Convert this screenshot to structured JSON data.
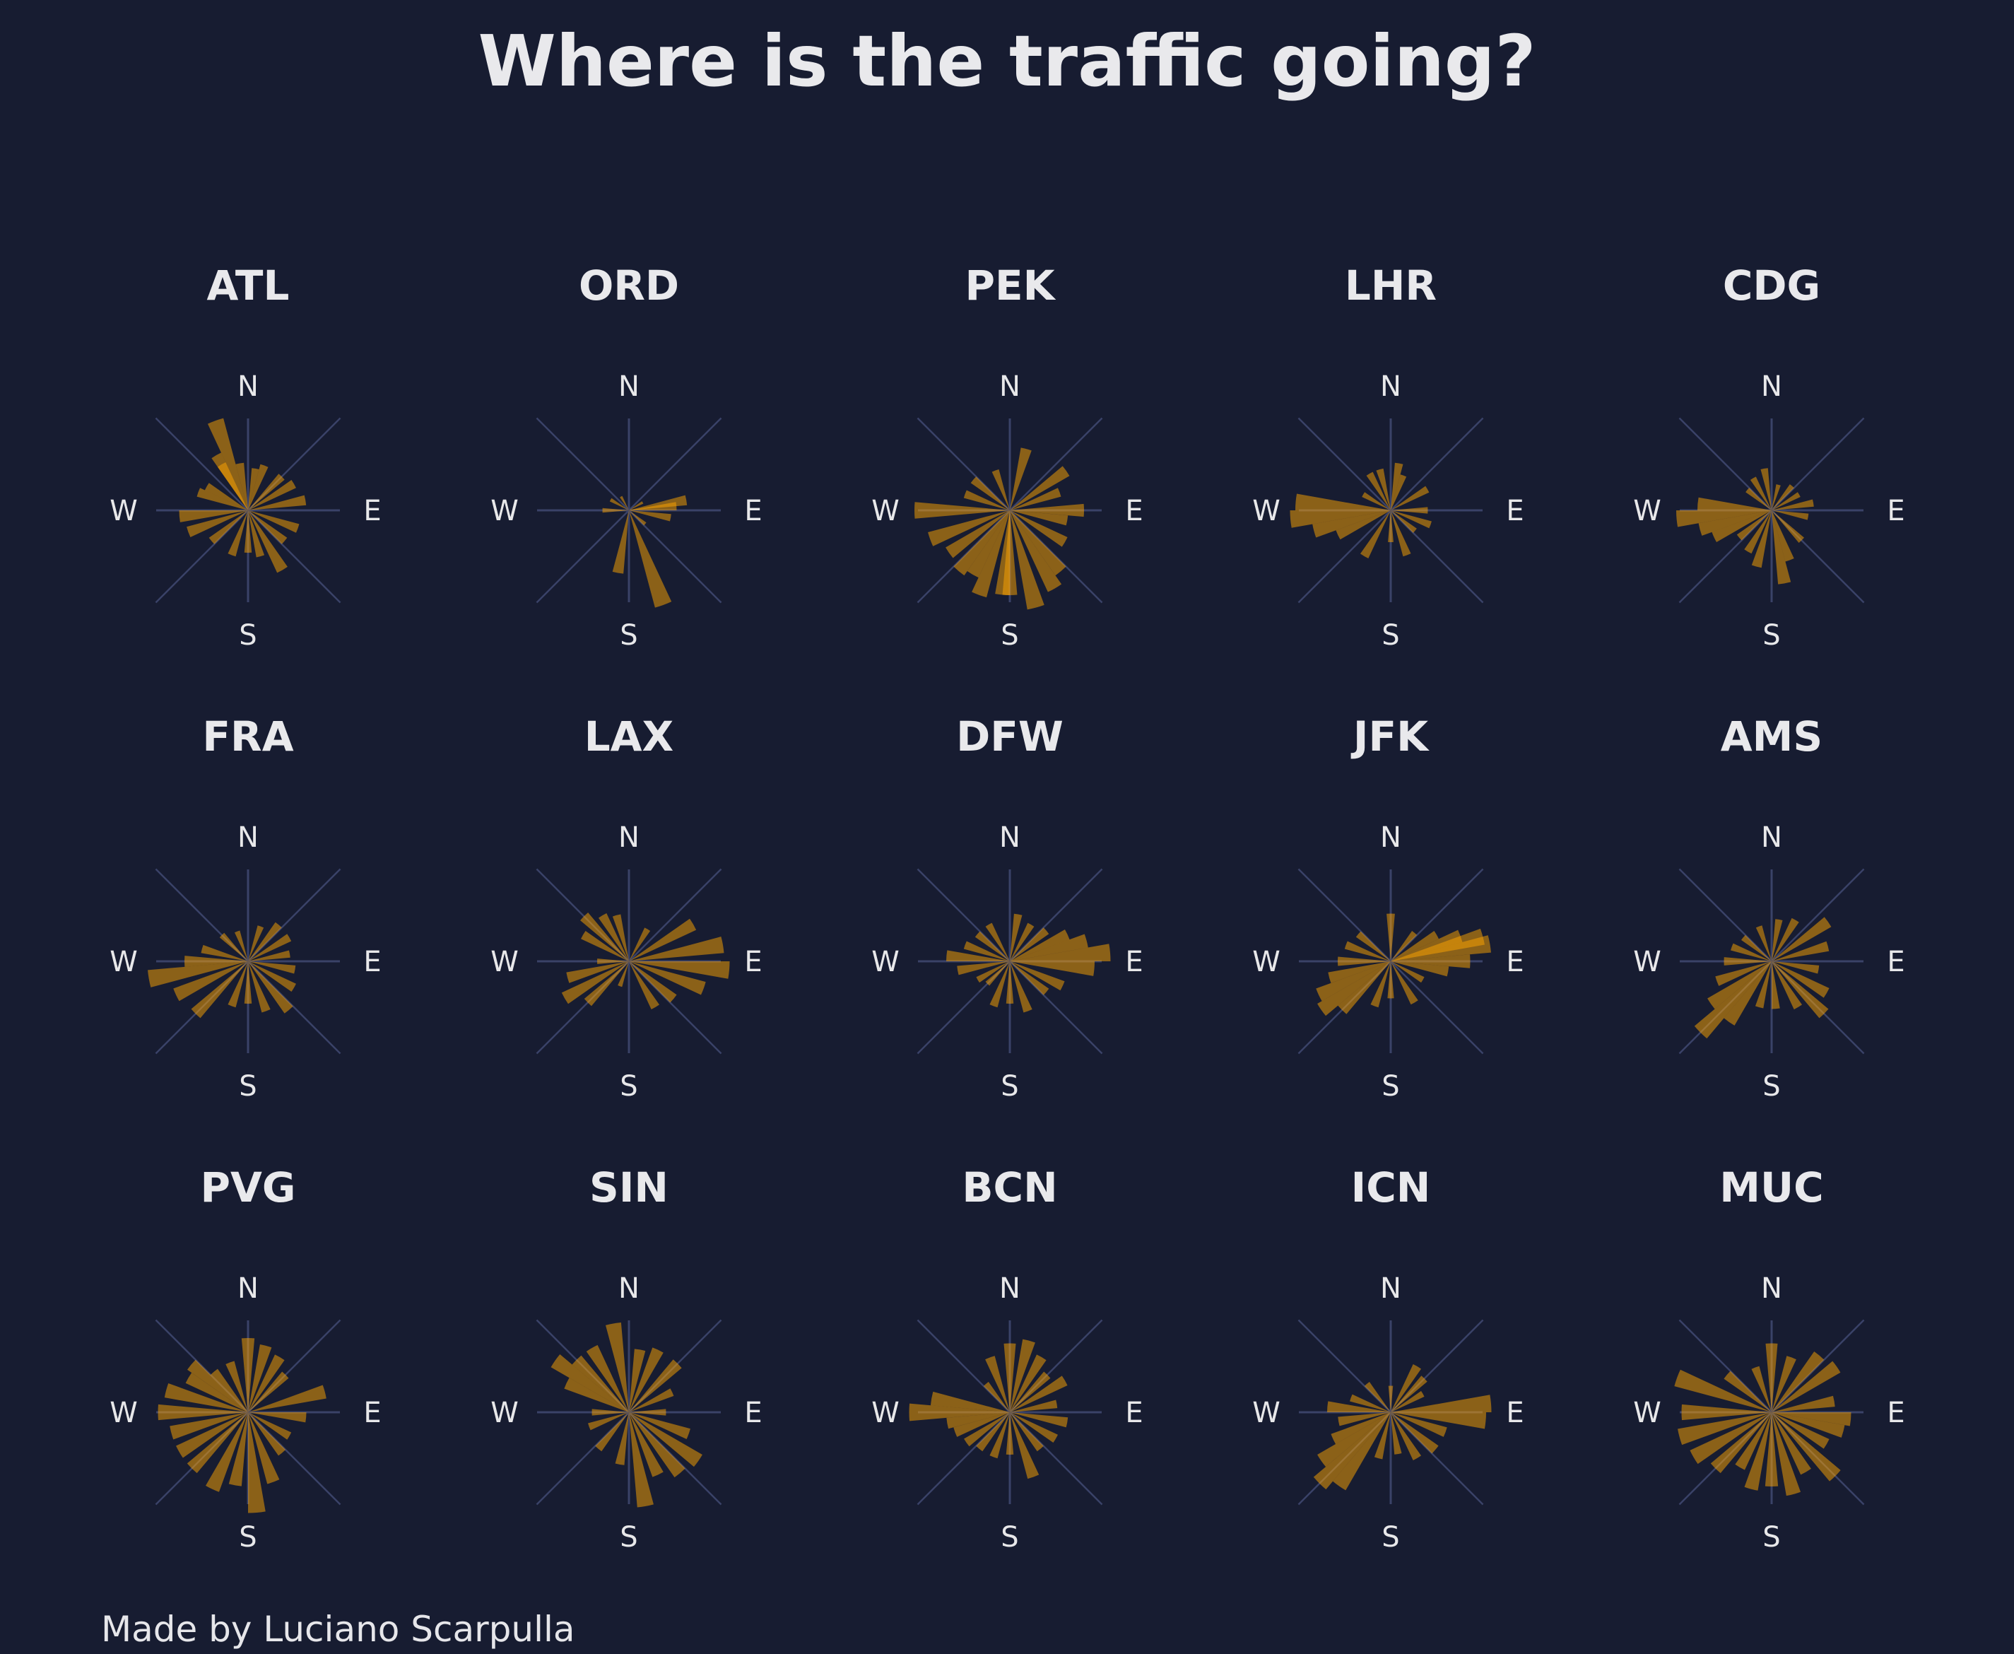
{
  "title": "Where is the traffic going?",
  "credit": "Made by Luciano Scarpulla",
  "colors": {
    "background": "#171c31",
    "bar": "#ffa500",
    "axis": "#3a4268",
    "text": "#e8e8ea"
  },
  "compass": [
    "N",
    "E",
    "S",
    "W"
  ],
  "chart_data": {
    "type": "polar-bar",
    "grid": true,
    "bearing_bin_deg": 10,
    "direction_labels": [
      "N",
      "E",
      "S",
      "W"
    ],
    "panels": [
      {
        "name": "ATL",
        "bars": [
          [
            -20,
            0.9
          ],
          [
            -30,
            0.6
          ],
          [
            80,
            0.55
          ],
          [
            60,
            0.5
          ],
          [
            150,
            0.65
          ],
          [
            165,
            0.45
          ],
          [
            250,
            0.6
          ],
          [
            265,
            0.65
          ],
          [
            290,
            0.5
          ],
          [
            200,
            0.45
          ],
          [
            20,
            0.45
          ],
          [
            110,
            0.5
          ],
          [
            180,
            0.4
          ],
          [
            330,
            0.5
          ],
          [
            45,
            0.45
          ],
          [
            130,
            0.45
          ],
          [
            230,
            0.45
          ],
          [
            300,
            0.45
          ],
          [
            10,
            0.4
          ],
          [
            350,
            0.45
          ]
        ]
      },
      {
        "name": "ORD",
        "bars": [
          [
            160,
            0.95
          ],
          [
            190,
            0.6
          ],
          [
            85,
            0.45
          ],
          [
            80,
            0.55
          ],
          [
            100,
            0.4
          ],
          [
            270,
            0.25
          ],
          [
            300,
            0.2
          ],
          [
            130,
            0.2
          ],
          [
            60,
            0.15
          ],
          [
            330,
            0.15
          ]
        ]
      },
      {
        "name": "PEK",
        "bars": [
          [
            15,
            0.6
          ],
          [
            55,
            0.65
          ],
          [
            90,
            0.7
          ],
          [
            270,
            0.9
          ],
          [
            250,
            0.8
          ],
          [
            235,
            0.7
          ],
          [
            220,
            0.75
          ],
          [
            200,
            0.85
          ],
          [
            185,
            0.8
          ],
          [
            165,
            0.95
          ],
          [
            150,
            0.85
          ],
          [
            140,
            0.75
          ],
          [
            120,
            0.6
          ],
          [
            100,
            0.55
          ],
          [
            70,
            0.5
          ],
          [
            290,
            0.45
          ],
          [
            310,
            0.45
          ],
          [
            340,
            0.4
          ],
          [
            180,
            0.8
          ],
          [
            210,
            0.7
          ]
        ]
      },
      {
        "name": "LHR",
        "bars": [
          [
            265,
            0.95
          ],
          [
            275,
            0.9
          ],
          [
            255,
            0.75
          ],
          [
            245,
            0.55
          ],
          [
            330,
            0.4
          ],
          [
            345,
            0.4
          ],
          [
            20,
            0.35
          ],
          [
            60,
            0.4
          ],
          [
            90,
            0.35
          ],
          [
            110,
            0.4
          ],
          [
            130,
            0.3
          ],
          [
            160,
            0.45
          ],
          [
            210,
            0.5
          ],
          [
            180,
            0.3
          ],
          [
            300,
            0.3
          ],
          [
            10,
            0.45
          ]
        ]
      },
      {
        "name": "CDG",
        "bars": [
          [
            265,
            0.9
          ],
          [
            275,
            0.7
          ],
          [
            255,
            0.7
          ],
          [
            245,
            0.6
          ],
          [
            170,
            0.7
          ],
          [
            195,
            0.55
          ],
          [
            160,
            0.5
          ],
          [
            135,
            0.4
          ],
          [
            80,
            0.4
          ],
          [
            100,
            0.35
          ],
          [
            60,
            0.3
          ],
          [
            330,
            0.35
          ],
          [
            15,
            0.25
          ],
          [
            350,
            0.4
          ],
          [
            230,
            0.4
          ],
          [
            210,
            0.45
          ],
          [
            310,
            0.3
          ],
          [
            40,
            0.3
          ]
        ]
      },
      {
        "name": "FRA",
        "bars": [
          [
            260,
            0.95
          ],
          [
            245,
            0.75
          ],
          [
            225,
            0.7
          ],
          [
            270,
            0.6
          ],
          [
            285,
            0.45
          ],
          [
            200,
            0.45
          ],
          [
            180,
            0.4
          ],
          [
            160,
            0.5
          ],
          [
            140,
            0.6
          ],
          [
            120,
            0.5
          ],
          [
            100,
            0.45
          ],
          [
            80,
            0.4
          ],
          [
            60,
            0.45
          ],
          [
            40,
            0.45
          ],
          [
            20,
            0.35
          ],
          [
            315,
            0.35
          ],
          [
            340,
            0.3
          ]
        ]
      },
      {
        "name": "LAX",
        "bars": [
          [
            80,
            0.9
          ],
          [
            95,
            0.95
          ],
          [
            110,
            0.75
          ],
          [
            60,
            0.7
          ],
          [
            130,
            0.55
          ],
          [
            150,
            0.5
          ],
          [
            240,
            0.7
          ],
          [
            255,
            0.6
          ],
          [
            225,
            0.55
          ],
          [
            315,
            0.6
          ],
          [
            300,
            0.5
          ],
          [
            330,
            0.5
          ],
          [
            345,
            0.45
          ],
          [
            30,
            0.35
          ],
          [
            200,
            0.25
          ],
          [
            270,
            0.3
          ]
        ]
      },
      {
        "name": "DFW",
        "bars": [
          [
            85,
            0.95
          ],
          [
            95,
            0.8
          ],
          [
            75,
            0.75
          ],
          [
            65,
            0.6
          ],
          [
            115,
            0.55
          ],
          [
            130,
            0.45
          ],
          [
            160,
            0.5
          ],
          [
            180,
            0.4
          ],
          [
            200,
            0.45
          ],
          [
            260,
            0.5
          ],
          [
            275,
            0.6
          ],
          [
            290,
            0.45
          ],
          [
            310,
            0.4
          ],
          [
            330,
            0.4
          ],
          [
            10,
            0.45
          ],
          [
            30,
            0.4
          ],
          [
            50,
            0.45
          ],
          [
            240,
            0.35
          ],
          [
            225,
            0.3
          ]
        ]
      },
      {
        "name": "JFK",
        "bars": [
          [
            80,
            0.95
          ],
          [
            75,
            0.9
          ],
          [
            90,
            0.75
          ],
          [
            70,
            0.7
          ],
          [
            100,
            0.55
          ],
          [
            235,
            0.8
          ],
          [
            245,
            0.75
          ],
          [
            225,
            0.65
          ],
          [
            255,
            0.6
          ],
          [
            270,
            0.5
          ],
          [
            290,
            0.45
          ],
          [
            310,
            0.4
          ],
          [
            0,
            0.45
          ],
          [
            40,
            0.35
          ],
          [
            150,
            0.45
          ],
          [
            180,
            0.35
          ],
          [
            200,
            0.45
          ],
          [
            120,
            0.35
          ],
          [
            60,
            0.5
          ]
        ]
      },
      {
        "name": "AMS",
        "bars": [
          [
            225,
            0.95
          ],
          [
            215,
            0.7
          ],
          [
            235,
            0.7
          ],
          [
            250,
            0.55
          ],
          [
            270,
            0.45
          ],
          [
            290,
            0.4
          ],
          [
            310,
            0.35
          ],
          [
            340,
            0.35
          ],
          [
            10,
            0.4
          ],
          [
            30,
            0.45
          ],
          [
            55,
            0.65
          ],
          [
            75,
            0.55
          ],
          [
            100,
            0.45
          ],
          [
            120,
            0.6
          ],
          [
            135,
            0.7
          ],
          [
            150,
            0.5
          ],
          [
            175,
            0.45
          ],
          [
            195,
            0.45
          ]
        ]
      },
      {
        "name": "PVG",
        "bars": [
          [
            270,
            0.85
          ],
          [
            285,
            0.8
          ],
          [
            300,
            0.65
          ],
          [
            310,
            0.7
          ],
          [
            0,
            0.7
          ],
          [
            15,
            0.65
          ],
          [
            30,
            0.6
          ],
          [
            45,
            0.5
          ],
          [
            75,
            0.75
          ],
          [
            95,
            0.55
          ],
          [
            120,
            0.45
          ],
          [
            140,
            0.5
          ],
          [
            160,
            0.7
          ],
          [
            175,
            0.95
          ],
          [
            190,
            0.7
          ],
          [
            205,
            0.8
          ],
          [
            225,
            0.75
          ],
          [
            240,
            0.75
          ],
          [
            255,
            0.75
          ],
          [
            320,
            0.5
          ],
          [
            340,
            0.5
          ]
        ]
      },
      {
        "name": "SIN",
        "bars": [
          [
            305,
            0.85
          ],
          [
            295,
            0.65
          ],
          [
            315,
            0.7
          ],
          [
            330,
            0.7
          ],
          [
            350,
            0.85
          ],
          [
            10,
            0.6
          ],
          [
            25,
            0.65
          ],
          [
            45,
            0.65
          ],
          [
            65,
            0.45
          ],
          [
            90,
            0.35
          ],
          [
            110,
            0.6
          ],
          [
            125,
            0.8
          ],
          [
            140,
            0.75
          ],
          [
            155,
            0.65
          ],
          [
            170,
            0.9
          ],
          [
            190,
            0.5
          ],
          [
            220,
            0.45
          ],
          [
            250,
            0.4
          ],
          [
            270,
            0.35
          ]
        ]
      },
      {
        "name": "BCN",
        "bars": [
          [
            270,
            0.95
          ],
          [
            280,
            0.75
          ],
          [
            260,
            0.6
          ],
          [
            250,
            0.55
          ],
          [
            235,
            0.5
          ],
          [
            220,
            0.45
          ],
          [
            200,
            0.45
          ],
          [
            180,
            0.4
          ],
          [
            160,
            0.65
          ],
          [
            140,
            0.45
          ],
          [
            120,
            0.5
          ],
          [
            100,
            0.55
          ],
          [
            80,
            0.45
          ],
          [
            60,
            0.6
          ],
          [
            45,
            0.5
          ],
          [
            30,
            0.6
          ],
          [
            15,
            0.7
          ],
          [
            0,
            0.65
          ],
          [
            340,
            0.55
          ],
          [
            320,
            0.35
          ]
        ]
      },
      {
        "name": "ICN",
        "bars": [
          [
            225,
            0.95
          ],
          [
            215,
            0.85
          ],
          [
            235,
            0.8
          ],
          [
            245,
            0.6
          ],
          [
            260,
            0.5
          ],
          [
            275,
            0.6
          ],
          [
            290,
            0.4
          ],
          [
            320,
            0.35
          ],
          [
            0,
            0.25
          ],
          [
            30,
            0.5
          ],
          [
            45,
            0.45
          ],
          [
            60,
            0.35
          ],
          [
            85,
            0.95
          ],
          [
            95,
            0.9
          ],
          [
            110,
            0.55
          ],
          [
            130,
            0.55
          ],
          [
            150,
            0.5
          ],
          [
            170,
            0.4
          ],
          [
            195,
            0.45
          ]
        ]
      },
      {
        "name": "MUC",
        "bars": [
          [
            290,
            0.95
          ],
          [
            270,
            0.85
          ],
          [
            255,
            0.9
          ],
          [
            240,
            0.85
          ],
          [
            225,
            0.75
          ],
          [
            210,
            0.6
          ],
          [
            195,
            0.75
          ],
          [
            180,
            0.7
          ],
          [
            165,
            0.8
          ],
          [
            150,
            0.65
          ],
          [
            135,
            0.85
          ],
          [
            120,
            0.6
          ],
          [
            105,
            0.7
          ],
          [
            95,
            0.75
          ],
          [
            80,
            0.6
          ],
          [
            55,
            0.75
          ],
          [
            40,
            0.7
          ],
          [
            20,
            0.55
          ],
          [
            0,
            0.65
          ],
          [
            340,
            0.45
          ],
          [
            310,
            0.55
          ]
        ]
      }
    ]
  }
}
